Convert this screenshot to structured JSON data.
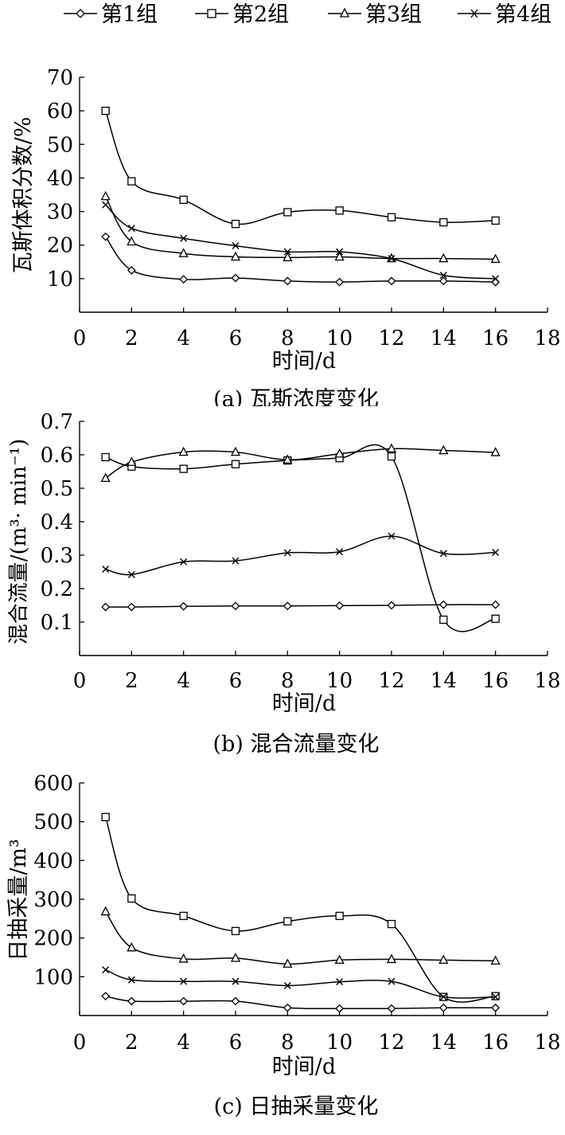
{
  "legend": {
    "items": [
      {
        "label": "第1组",
        "marker": "diamond"
      },
      {
        "label": "第2组",
        "marker": "square"
      },
      {
        "label": "第3组",
        "marker": "triangle"
      },
      {
        "label": "第4组",
        "marker": "cross"
      }
    ]
  },
  "chart_data": [
    {
      "type": "line",
      "caption": "(a) 瓦斯浓度变化",
      "xlabel": "时间/d",
      "ylabel": "瓦斯体积分数/%",
      "xlim": [
        0,
        18
      ],
      "ylim": [
        0,
        70
      ],
      "xticks": [
        0,
        2,
        4,
        6,
        8,
        10,
        12,
        14,
        16,
        18
      ],
      "yticks": [
        10,
        20,
        30,
        40,
        50,
        60,
        70
      ],
      "x": [
        1,
        2,
        4,
        6,
        8,
        10,
        12,
        14,
        16
      ],
      "series": [
        {
          "name": "第1组",
          "marker": "diamond",
          "values": [
            22.5,
            12.5,
            9.8,
            10.2,
            9.3,
            9.0,
            9.3,
            9.3,
            9.0
          ]
        },
        {
          "name": "第2组",
          "marker": "square",
          "values": [
            60,
            39,
            33.5,
            26.3,
            29.8,
            30.3,
            28.3,
            26.8,
            27.3
          ]
        },
        {
          "name": "第3组",
          "marker": "triangle",
          "values": [
            34.5,
            21,
            17.5,
            16.5,
            16.3,
            16.5,
            16.0,
            16.0,
            15.8
          ]
        },
        {
          "name": "第4组",
          "marker": "cross",
          "values": [
            32,
            25,
            22,
            19.8,
            18,
            18,
            16,
            11,
            10
          ]
        }
      ]
    },
    {
      "type": "line",
      "caption": "(b) 混合流量变化",
      "xlabel": "时间/d",
      "ylabel": "混合流量/(m³· min⁻¹)",
      "xlim": [
        0,
        18
      ],
      "ylim": [
        0,
        0.7
      ],
      "xticks": [
        0,
        2,
        4,
        6,
        8,
        10,
        12,
        14,
        16,
        18
      ],
      "yticks": [
        "0.1",
        "0.2",
        "0.3",
        "0.4",
        "0.5",
        "0.6",
        "0.7"
      ],
      "x": [
        1,
        2,
        4,
        6,
        8,
        10,
        12,
        14,
        16
      ],
      "series": [
        {
          "name": "第1组",
          "marker": "diamond",
          "values": [
            0.145,
            0.145,
            0.147,
            0.148,
            0.148,
            0.149,
            0.15,
            0.152,
            0.152
          ]
        },
        {
          "name": "第2组",
          "marker": "square",
          "values": [
            0.593,
            0.565,
            0.558,
            0.572,
            0.583,
            0.59,
            0.595,
            0.107,
            0.11
          ]
        },
        {
          "name": "第3组",
          "marker": "triangle",
          "values": [
            0.53,
            0.578,
            0.608,
            0.608,
            0.585,
            0.603,
            0.618,
            0.613,
            0.607
          ]
        },
        {
          "name": "第4组",
          "marker": "cross",
          "values": [
            0.258,
            0.242,
            0.28,
            0.283,
            0.307,
            0.31,
            0.357,
            0.305,
            0.308
          ]
        }
      ]
    },
    {
      "type": "line",
      "caption": "(c) 日抽采量变化",
      "xlabel": "时间/d",
      "ylabel": "日抽采量/m³",
      "xlim": [
        0,
        18
      ],
      "ylim": [
        0,
        600
      ],
      "xticks": [
        0,
        2,
        4,
        6,
        8,
        10,
        12,
        14,
        16,
        18
      ],
      "yticks": [
        100,
        200,
        300,
        400,
        500,
        600
      ],
      "x": [
        1,
        2,
        4,
        6,
        8,
        10,
        12,
        14,
        16
      ],
      "series": [
        {
          "name": "第1组",
          "marker": "diamond",
          "values": [
            50,
            37,
            37,
            37,
            20,
            18,
            18,
            20,
            20
          ]
        },
        {
          "name": "第2组",
          "marker": "square",
          "values": [
            512,
            302,
            257,
            218,
            243,
            257,
            236,
            48,
            50
          ]
        },
        {
          "name": "第3组",
          "marker": "triangle",
          "values": [
            268,
            175,
            146,
            148,
            133,
            143,
            145,
            143,
            141
          ]
        },
        {
          "name": "第4组",
          "marker": "cross",
          "values": [
            118,
            92,
            88,
            88,
            77,
            87,
            88,
            48,
            48
          ]
        }
      ]
    }
  ]
}
